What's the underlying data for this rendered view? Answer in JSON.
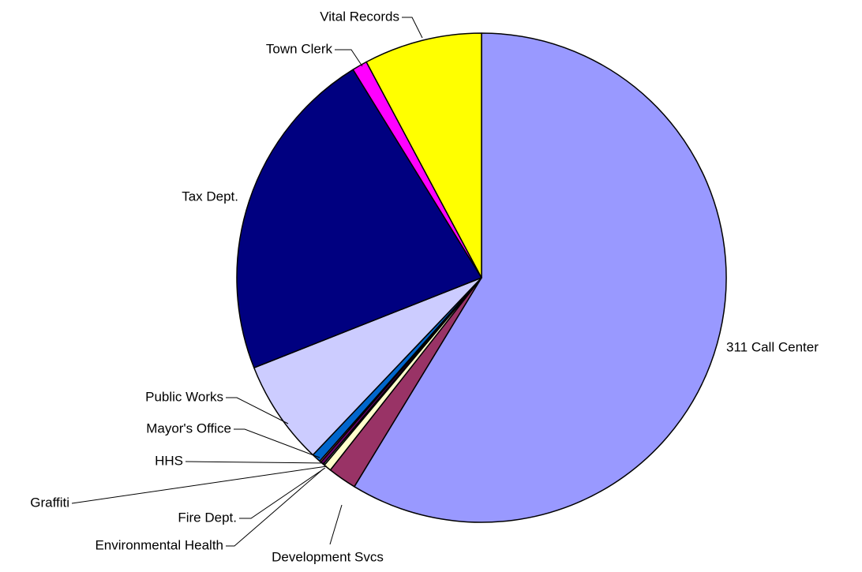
{
  "chart_data": {
    "type": "pie",
    "categories": [
      "311 Call Center",
      "Development Svcs",
      "Environmental Health",
      "Fire Dept.",
      "Graffiti",
      "HHS",
      "Mayor's Office",
      "Public Works",
      "Tax Dept.",
      "Town Clerk",
      "Vital Records"
    ],
    "values": [
      58.7,
      1.9,
      0.5,
      0.1,
      0.2,
      0.1,
      0.6,
      6.9,
      22.2,
      1.0,
      7.8
    ],
    "colors": [
      "#9999ff",
      "#993366",
      "#ffffcc",
      "#ccffff",
      "#660066",
      "#ff8080",
      "#0066cc",
      "#ccccff",
      "#000080",
      "#ff00ff",
      "#ffff00"
    ]
  }
}
